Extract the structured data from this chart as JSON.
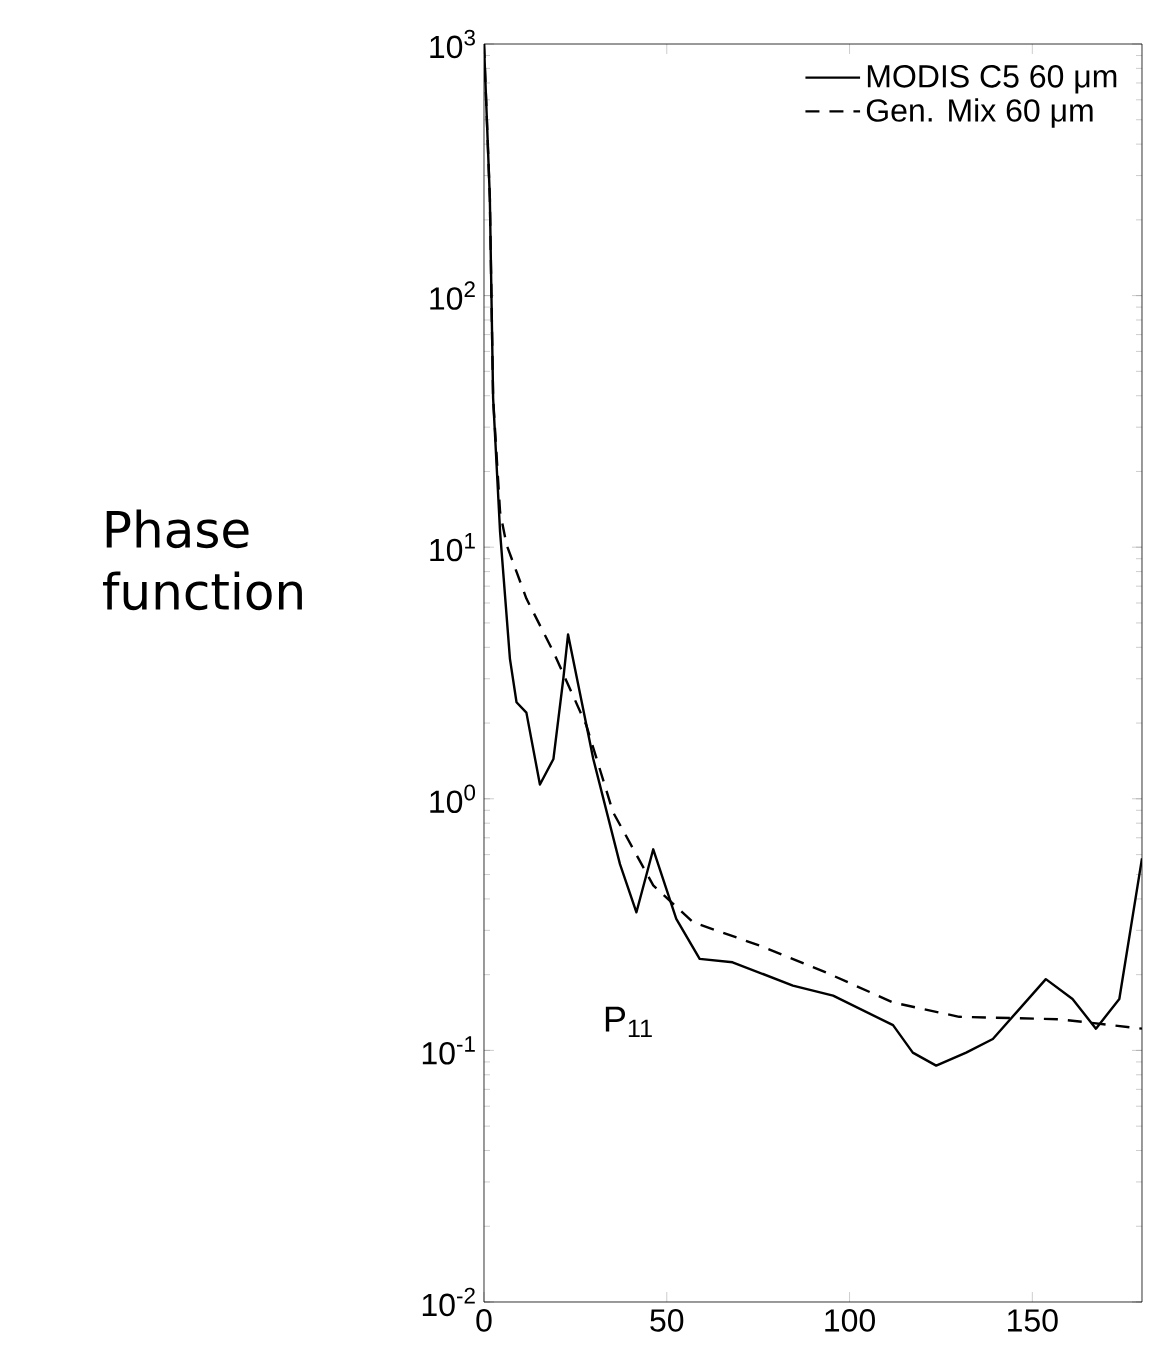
{
  "chart_data": {
    "type": "line",
    "ylabel": "Phase function",
    "annotations": [
      "P$_{11}$"
    ],
    "xlim": [
      0,
      180
    ],
    "xticks": [
      0,
      50,
      100,
      150
    ],
    "ylim": [
      0.01,
      1000
    ],
    "log": "y",
    "yticks": [
      {
        "value": 0.01,
        "label": "10$^{-2}$"
      },
      {
        "value": 0.1,
        "label": "10$^{-1}$"
      },
      {
        "value": 1,
        "label": "10$^{0}$"
      },
      {
        "value": 10,
        "label": "10$^{1}$"
      },
      {
        "value": 100,
        "label": "10$^{2}$"
      },
      {
        "value": 1000,
        "label": "10$^{3}$"
      }
    ],
    "grid": false,
    "legend": "top right",
    "series": [
      {
        "name": "MODIS C5 60 μm",
        "color": "#000000",
        "line_style": "solid",
        "x": [
          0,
          1.6,
          2.5,
          4.4,
          7.1,
          8.9,
          11.6,
          15.3,
          19,
          21.7,
          23,
          29.9,
          37.2,
          41.7,
          46.3,
          52.6,
          59,
          68,
          84.5,
          95.5,
          111.9,
          117.3,
          123.7,
          131.9,
          139.2,
          153.7,
          161,
          167.4,
          173.8,
          180
        ],
        "values": [
          1000,
          245,
          39,
          11.5,
          3.6,
          2.42,
          2.2,
          1.14,
          1.44,
          3.0,
          4.5,
          1.44,
          0.55,
          0.354,
          0.63,
          0.333,
          0.231,
          0.224,
          0.181,
          0.165,
          0.126,
          0.098,
          0.087,
          0.098,
          0.111,
          0.192,
          0.16,
          0.122,
          0.16,
          0.58
        ]
      },
      {
        "name": "Gen. Mix 60 μm",
        "color": "#000000",
        "line_style": "dashed",
        "x": [
          0,
          1.6,
          2.5,
          4.4,
          6.2,
          11.6,
          19,
          28,
          35.3,
          46.3,
          57.2,
          75.4,
          93.6,
          111.9,
          130,
          157.4,
          180
        ],
        "values": [
          1000,
          245,
          39,
          13.8,
          10.2,
          6.25,
          3.83,
          1.96,
          0.885,
          0.453,
          0.323,
          0.261,
          0.204,
          0.155,
          0.136,
          0.133,
          0.122
        ]
      }
    ]
  }
}
